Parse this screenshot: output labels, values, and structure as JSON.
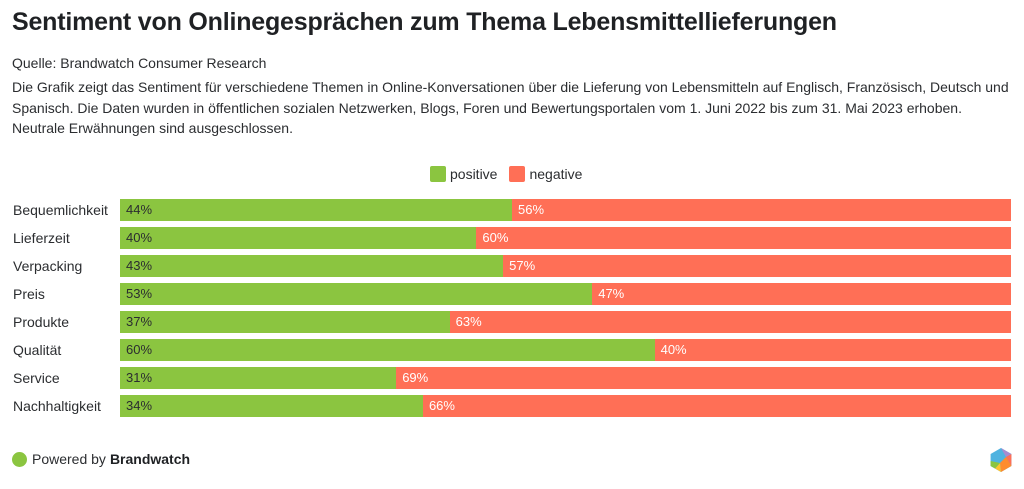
{
  "header": {
    "title": "Sentiment von Onlinegesprächen zum Thema Lebensmittellieferungen",
    "source": "Quelle: Brandwatch Consumer Research",
    "description": "Die Grafik zeigt das Sentiment für verschiedene Themen in Online-Konversationen über die Lieferung von Lebensmitteln auf Englisch, Französisch, Deutsch und Spanisch. Die Daten wurden in öffentlichen sozialen Netzwerken, Blogs, Foren und Bewertungsportalen vom 1. Juni 2022 bis zum 31. Mai 2023 erhoben. Neutrale Erwähnungen sind ausgeschlossen."
  },
  "colors": {
    "positive": "#8bc540",
    "negative": "#ff6f56",
    "positive_label": "#2b2d30",
    "negative_label": "#ffffff"
  },
  "chart_data": {
    "type": "bar",
    "orientation": "horizontal",
    "stacked": true,
    "normalized": true,
    "title": "Sentiment von Onlinegesprächen zum Thema Lebensmittellieferungen",
    "xlabel": "",
    "ylabel": "",
    "xlim": [
      0,
      100
    ],
    "unit": "%",
    "grid": false,
    "legend_position": "top-center",
    "categories": [
      "Bequemlichkeit",
      "Lieferzeit",
      "Verpacking",
      "Preis",
      "Produkte",
      "Qualität",
      "Service",
      "Nachhaltigkeit"
    ],
    "series": [
      {
        "name": "positive",
        "values": [
          44,
          40,
          43,
          53,
          37,
          60,
          31,
          34
        ]
      },
      {
        "name": "negative",
        "values": [
          56,
          60,
          57,
          47,
          63,
          40,
          69,
          66
        ]
      }
    ]
  },
  "legend": [
    {
      "label": "positive",
      "color_key": "positive"
    },
    {
      "label": "negative",
      "color_key": "negative"
    }
  ],
  "footer": {
    "powered_by": "Powered by",
    "brand": "Brandwatch",
    "logo_icon": "brandwatch-hexagon-logo"
  }
}
